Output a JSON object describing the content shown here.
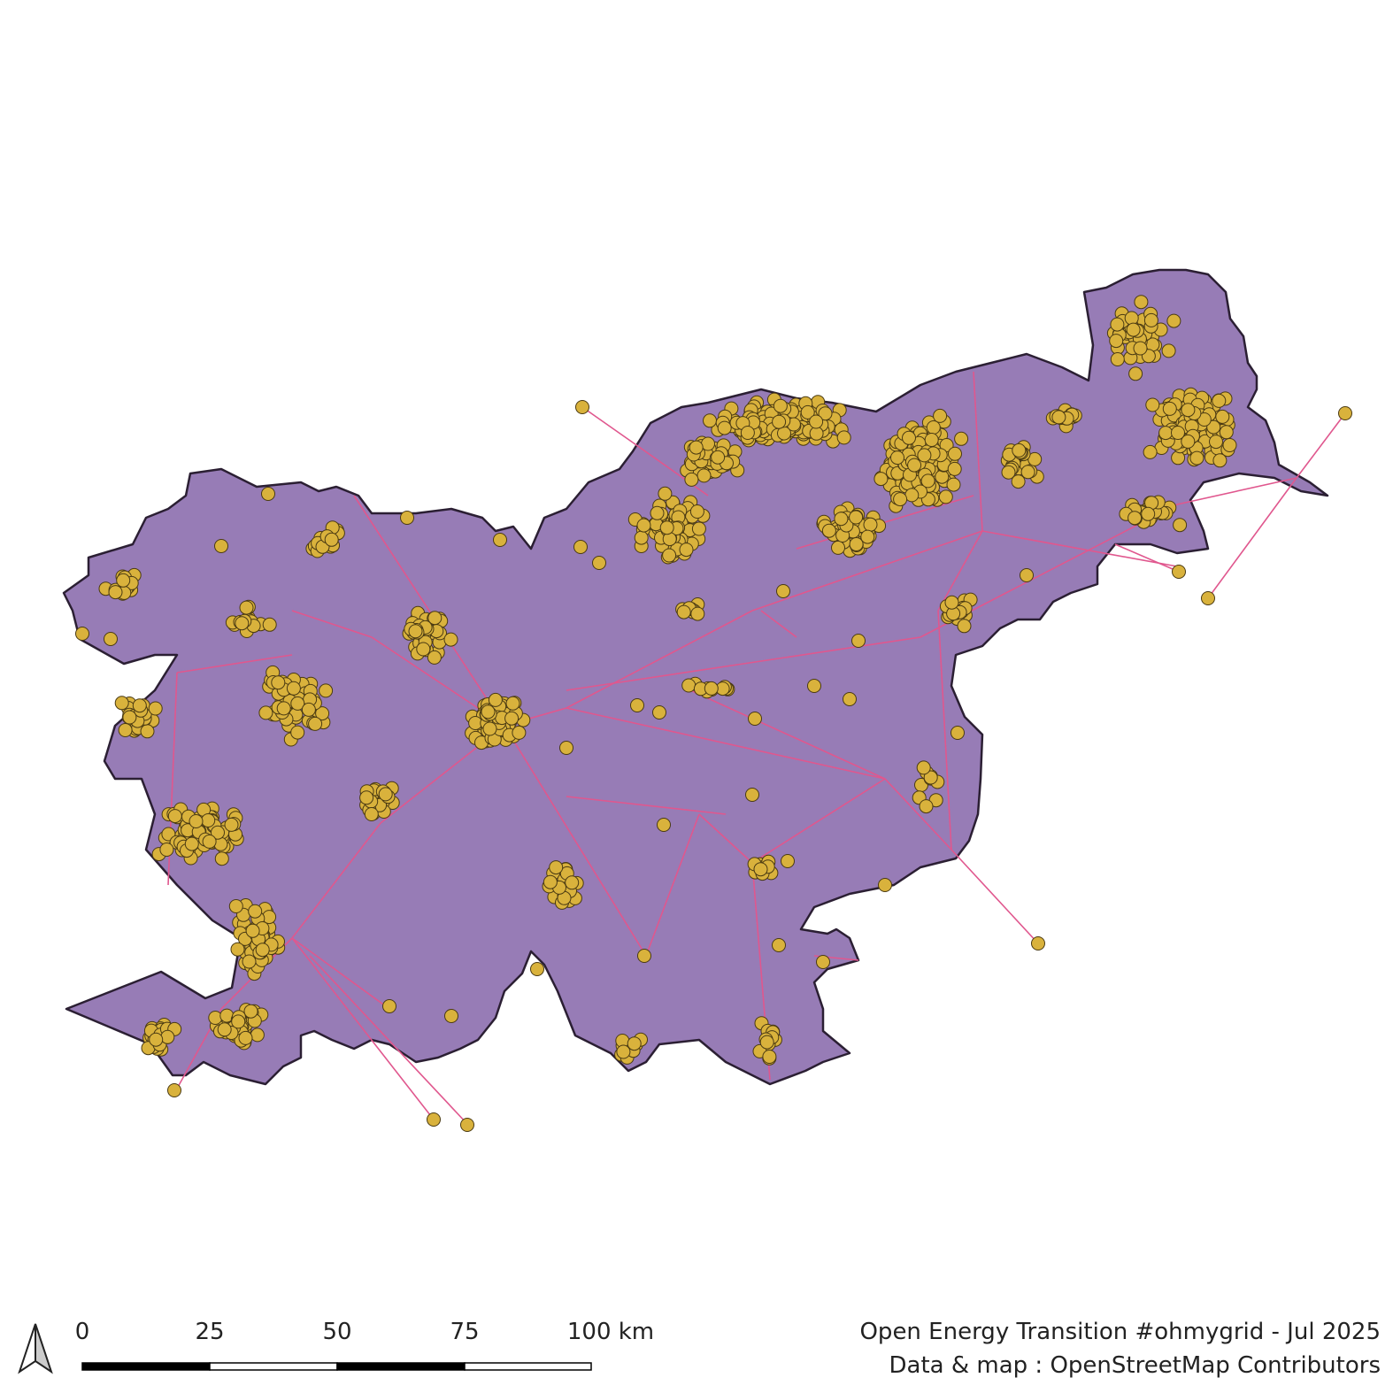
{
  "colors": {
    "land_fill": "#977cb6",
    "land_stroke": "#2b1f33",
    "line_color": "#e0578e",
    "point_fill": "#d9b23c",
    "point_stroke": "#4a3a12",
    "background": "#ffffff"
  },
  "north_arrow": {
    "icon": "north-arrow-icon"
  },
  "scale_bar": {
    "labels": [
      "0",
      "25",
      "50",
      "75",
      "100 km"
    ]
  },
  "credits": {
    "line1": "Open Energy Transition #ohmygrid - Jul 2025",
    "line2": "Data & map : OpenStreetMap Contributors"
  },
  "map_layers": {
    "country": "Slovenia",
    "lines": "power lines",
    "points": "power substations / nodes"
  }
}
